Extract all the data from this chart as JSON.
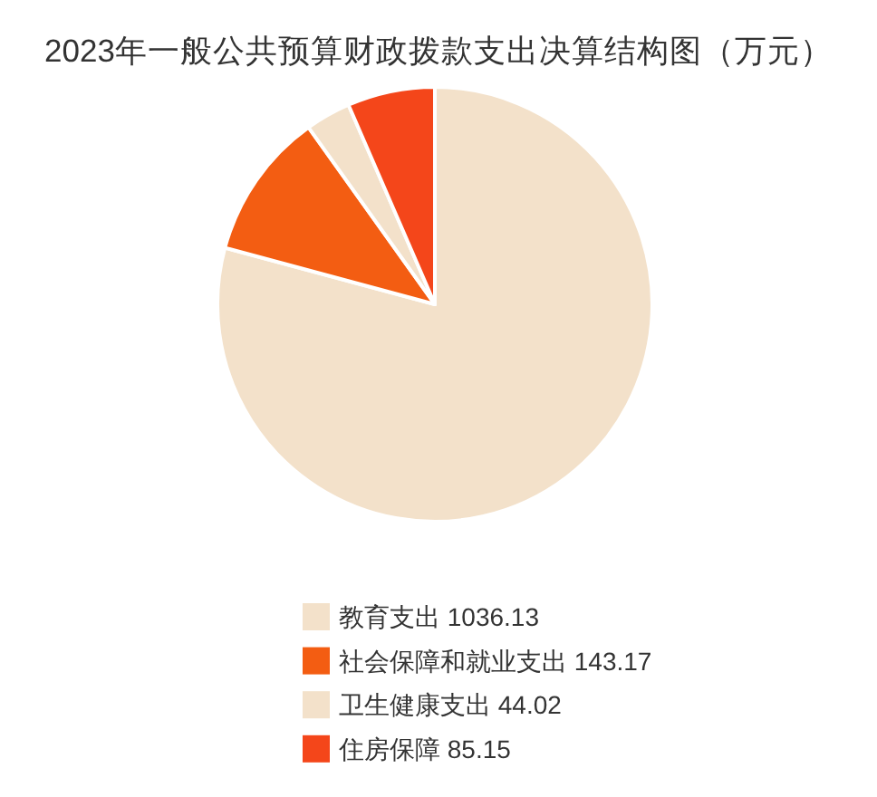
{
  "chart_data": {
    "type": "pie",
    "title": "2023年一般公共预算财政拨款支出决算结构图（万元）",
    "categories": [
      "教育支出 1036.13",
      "社会保障和就业支出 143.17",
      "卫生健康支出 44.02",
      "住房保障 85.15"
    ],
    "values": [
      1036.13,
      143.17,
      44.02,
      85.15
    ],
    "colors": [
      "#f3e1ca",
      "#f35d12",
      "#f3e1ca",
      "#f4461a"
    ],
    "legend": "bottom"
  }
}
